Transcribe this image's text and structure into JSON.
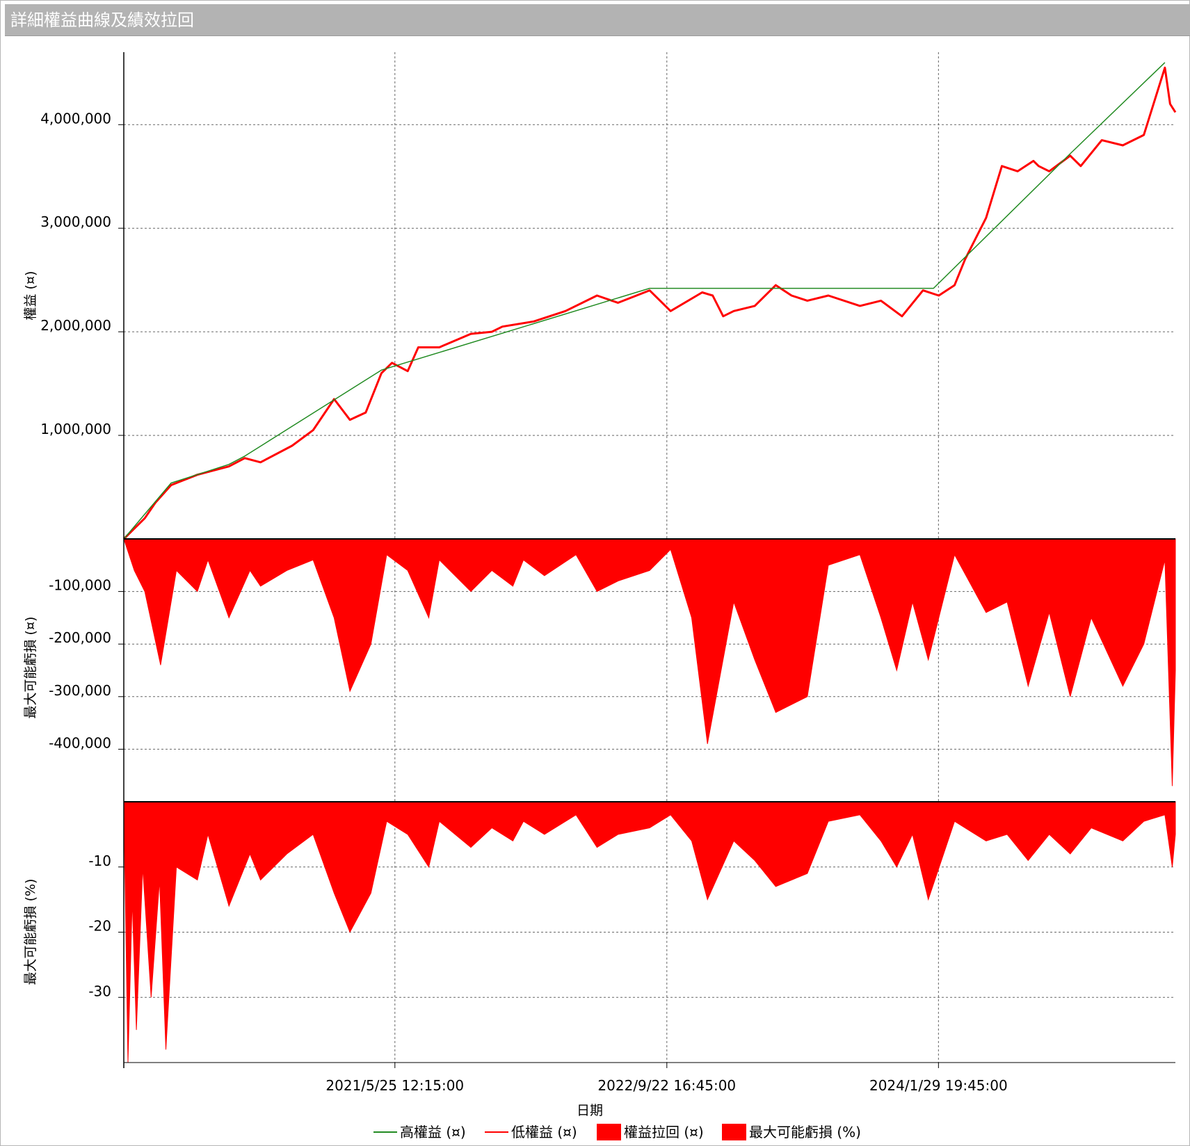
{
  "window": {
    "title": "詳細權益曲線及績效拉回"
  },
  "chart_data": {
    "type": "line",
    "xlabel": "日期",
    "x_ticks": [
      "2021/5/25 12:15:00",
      "2022/9/22 16:45:00",
      "2024/1/29 19:45:00"
    ],
    "legend": [
      {
        "label": "高權益 (¤)",
        "kind": "line",
        "color": "#228B22"
      },
      {
        "label": "低權益 (¤)",
        "kind": "line",
        "color": "#ff0000"
      },
      {
        "label": "權益拉回 (¤)",
        "kind": "area",
        "color": "#ff0000"
      },
      {
        "label": "最大可能虧損 (%)",
        "kind": "area",
        "color": "#ff0000"
      }
    ],
    "panels": [
      {
        "name": "equity",
        "ylabel": "權益 (¤)",
        "ylim": [
          0,
          4700000
        ],
        "y_ticks": [
          1000000,
          2000000,
          3000000,
          4000000
        ],
        "y_tick_labels": [
          "1,000,000",
          "2,000,000",
          "3,000,000",
          "4,000,000"
        ],
        "series": [
          {
            "name": "低權益 (¤)",
            "color": "#ff0000",
            "x": [
              0,
              0.02,
              0.03,
              0.045,
              0.07,
              0.1,
              0.115,
              0.13,
              0.16,
              0.18,
              0.2,
              0.215,
              0.23,
              0.245,
              0.255,
              0.27,
              0.28,
              0.3,
              0.33,
              0.35,
              0.36,
              0.39,
              0.42,
              0.45,
              0.47,
              0.5,
              0.52,
              0.55,
              0.56,
              0.57,
              0.58,
              0.6,
              0.62,
              0.635,
              0.65,
              0.67,
              0.7,
              0.72,
              0.74,
              0.76,
              0.775,
              0.79,
              0.8,
              0.82,
              0.835,
              0.85,
              0.865,
              0.87,
              0.88,
              0.9,
              0.91,
              0.93,
              0.95,
              0.97,
              0.99,
              0.995,
              1.0
            ],
            "y": [
              0,
              200000,
              350000,
              520000,
              620000,
              700000,
              780000,
              740000,
              900000,
              1050000,
              1350000,
              1150000,
              1220000,
              1600000,
              1700000,
              1620000,
              1850000,
              1850000,
              1980000,
              2000000,
              2050000,
              2100000,
              2200000,
              2350000,
              2280000,
              2400000,
              2200000,
              2380000,
              2350000,
              2150000,
              2200000,
              2250000,
              2450000,
              2350000,
              2300000,
              2350000,
              2250000,
              2300000,
              2150000,
              2400000,
              2350000,
              2450000,
              2700000,
              3100000,
              3600000,
              3550000,
              3650000,
              3600000,
              3550000,
              3700000,
              3600000,
              3850000,
              3800000,
              3900000,
              4550000,
              4200000,
              4120000
            ]
          },
          {
            "name": "高權益 (¤)",
            "color": "#228B22",
            "x": [
              0,
              0.045,
              0.1,
              0.115,
              0.245,
              0.5,
              0.77,
              0.9,
              0.99
            ],
            "y": [
              0,
              540000,
              720000,
              800000,
              1630000,
              2420000,
              2420000,
              3720000,
              4600000
            ]
          }
        ]
      },
      {
        "name": "drawdown",
        "ylabel": "最大可能虧損 (¤)",
        "ylim": [
          -500000,
          0
        ],
        "y_ticks": [
          -100000,
          -200000,
          -300000,
          -400000
        ],
        "y_tick_labels": [
          "-100,000",
          "-200,000",
          "-300,000",
          "-400,000"
        ],
        "series": [
          {
            "name": "權益拉回 (¤)",
            "color": "#ff0000",
            "x": [
              0,
              0.01,
              0.02,
              0.035,
              0.05,
              0.07,
              0.08,
              0.1,
              0.12,
              0.13,
              0.155,
              0.18,
              0.2,
              0.215,
              0.235,
              0.25,
              0.27,
              0.29,
              0.3,
              0.33,
              0.35,
              0.37,
              0.38,
              0.4,
              0.43,
              0.45,
              0.47,
              0.5,
              0.52,
              0.54,
              0.555,
              0.58,
              0.6,
              0.62,
              0.65,
              0.67,
              0.7,
              0.72,
              0.735,
              0.75,
              0.765,
              0.79,
              0.82,
              0.84,
              0.86,
              0.88,
              0.9,
              0.92,
              0.95,
              0.97,
              0.99,
              0.997,
              1.0
            ],
            "y": [
              0,
              -60000,
              -100000,
              -240000,
              -60000,
              -100000,
              -40000,
              -150000,
              -60000,
              -90000,
              -60000,
              -40000,
              -150000,
              -290000,
              -200000,
              -30000,
              -60000,
              -150000,
              -40000,
              -100000,
              -60000,
              -90000,
              -40000,
              -70000,
              -30000,
              -100000,
              -80000,
              -60000,
              -20000,
              -150000,
              -390000,
              -120000,
              -230000,
              -330000,
              -300000,
              -50000,
              -30000,
              -150000,
              -250000,
              -120000,
              -230000,
              -30000,
              -140000,
              -120000,
              -280000,
              -140000,
              -300000,
              -150000,
              -280000,
              -200000,
              -40000,
              -470000,
              -250000
            ]
          }
        ]
      },
      {
        "name": "drawdown_pct",
        "ylabel": "最大可能虧損 (%)",
        "ylim": [
          -40,
          0
        ],
        "y_ticks": [
          -10,
          -20,
          -30
        ],
        "y_tick_labels": [
          "-10",
          "-20",
          "-30"
        ],
        "series": [
          {
            "name": "最大可能虧損 (%)",
            "color": "#ff0000",
            "x": [
              0,
              0.004,
              0.008,
              0.012,
              0.018,
              0.026,
              0.034,
              0.04,
              0.05,
              0.07,
              0.08,
              0.1,
              0.12,
              0.13,
              0.155,
              0.18,
              0.2,
              0.215,
              0.235,
              0.25,
              0.27,
              0.29,
              0.3,
              0.33,
              0.35,
              0.37,
              0.38,
              0.4,
              0.43,
              0.45,
              0.47,
              0.5,
              0.52,
              0.54,
              0.555,
              0.58,
              0.6,
              0.62,
              0.65,
              0.67,
              0.7,
              0.72,
              0.735,
              0.75,
              0.765,
              0.79,
              0.82,
              0.84,
              0.86,
              0.88,
              0.9,
              0.92,
              0.95,
              0.97,
              0.99,
              0.997,
              1.0
            ],
            "y": [
              0,
              -40,
              -15,
              -35,
              -10,
              -30,
              -12,
              -38,
              -10,
              -12,
              -5,
              -16,
              -8,
              -12,
              -8,
              -5,
              -14,
              -20,
              -14,
              -3,
              -5,
              -10,
              -3,
              -7,
              -4,
              -6,
              -3,
              -5,
              -2,
              -7,
              -5,
              -4,
              -2,
              -6,
              -15,
              -6,
              -9,
              -13,
              -11,
              -3,
              -2,
              -6,
              -10,
              -5,
              -15,
              -3,
              -6,
              -5,
              -9,
              -5,
              -8,
              -4,
              -6,
              -3,
              -2,
              -10,
              -5
            ]
          }
        ]
      }
    ]
  }
}
